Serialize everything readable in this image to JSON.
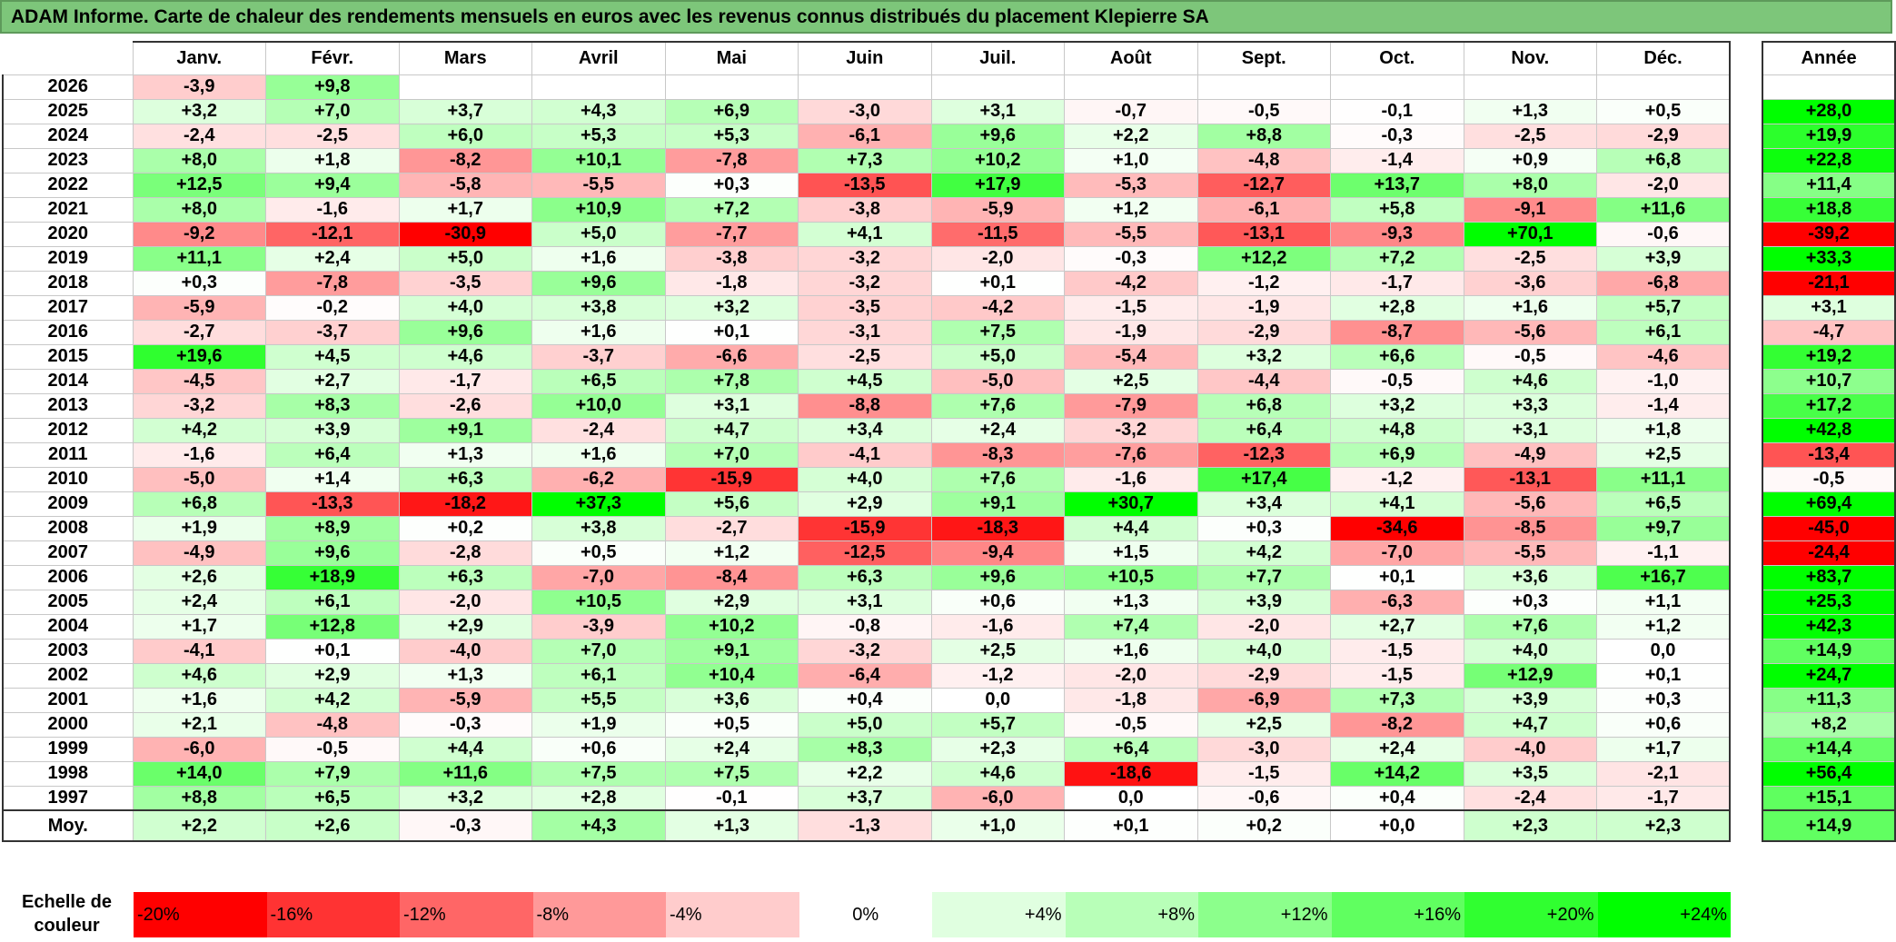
{
  "title": "ADAM Informe. Carte de chaleur des rendements mensuels en euros avec les revenus connus distribués du placement Klepierre SA",
  "chart_data": {
    "type": "heatmap",
    "months": [
      "Janv.",
      "Févr.",
      "Mars",
      "Avril",
      "Mai",
      "Juin",
      "Juil.",
      "Août",
      "Sept.",
      "Oct.",
      "Nov.",
      "Déc."
    ],
    "year_header": "Année",
    "rows": [
      {
        "year": "2026",
        "values": [
          "-3,9",
          "+9,8",
          "",
          "",
          "",
          "",
          "",
          "",
          "",
          "",
          "",
          ""
        ],
        "annual": ""
      },
      {
        "year": "2025",
        "values": [
          "+3,2",
          "+7,0",
          "+3,7",
          "+4,3",
          "+6,9",
          "-3,0",
          "+3,1",
          "-0,7",
          "-0,5",
          "-0,1",
          "+1,3",
          "+0,5"
        ],
        "annual": "+28,0"
      },
      {
        "year": "2024",
        "values": [
          "-2,4",
          "-2,5",
          "+6,0",
          "+5,3",
          "+5,3",
          "-6,1",
          "+9,6",
          "+2,2",
          "+8,8",
          "-0,3",
          "-2,5",
          "-2,9"
        ],
        "annual": "+19,9"
      },
      {
        "year": "2023",
        "values": [
          "+8,0",
          "+1,8",
          "-8,2",
          "+10,1",
          "-7,8",
          "+7,3",
          "+10,2",
          "+1,0",
          "-4,8",
          "-1,4",
          "+0,9",
          "+6,8"
        ],
        "annual": "+22,8"
      },
      {
        "year": "2022",
        "values": [
          "+12,5",
          "+9,4",
          "-5,8",
          "-5,5",
          "+0,3",
          "-13,5",
          "+17,9",
          "-5,3",
          "-12,7",
          "+13,7",
          "+8,0",
          "-2,0"
        ],
        "annual": "+11,4"
      },
      {
        "year": "2021",
        "values": [
          "+8,0",
          "-1,6",
          "+1,7",
          "+10,9",
          "+7,2",
          "-3,8",
          "-5,9",
          "+1,2",
          "-6,1",
          "+5,8",
          "-9,1",
          "+11,6"
        ],
        "annual": "+18,8"
      },
      {
        "year": "2020",
        "values": [
          "-9,2",
          "-12,1",
          "-30,9",
          "+5,0",
          "-7,7",
          "+4,1",
          "-11,5",
          "-5,5",
          "-13,1",
          "-9,3",
          "+70,1",
          "-0,6"
        ],
        "annual": "-39,2"
      },
      {
        "year": "2019",
        "values": [
          "+11,1",
          "+2,4",
          "+5,0",
          "+1,6",
          "-3,8",
          "-3,2",
          "-2,0",
          "-0,3",
          "+12,2",
          "+7,2",
          "-2,5",
          "+3,9"
        ],
        "annual": "+33,3"
      },
      {
        "year": "2018",
        "values": [
          "+0,3",
          "-7,8",
          "-3,5",
          "+9,6",
          "-1,8",
          "-3,2",
          "+0,1",
          "-4,2",
          "-1,2",
          "-1,7",
          "-3,6",
          "-6,8"
        ],
        "annual": "-21,1"
      },
      {
        "year": "2017",
        "values": [
          "-5,9",
          "-0,2",
          "+4,0",
          "+3,8",
          "+3,2",
          "-3,5",
          "-4,2",
          "-1,5",
          "-1,9",
          "+2,8",
          "+1,6",
          "+5,7"
        ],
        "annual": "+3,1"
      },
      {
        "year": "2016",
        "values": [
          "-2,7",
          "-3,7",
          "+9,6",
          "+1,6",
          "+0,1",
          "-3,1",
          "+7,5",
          "-1,9",
          "-2,9",
          "-8,7",
          "-5,6",
          "+6,1"
        ],
        "annual": "-4,7"
      },
      {
        "year": "2015",
        "values": [
          "+19,6",
          "+4,5",
          "+4,6",
          "-3,7",
          "-6,6",
          "-2,5",
          "+5,0",
          "-5,4",
          "+3,2",
          "+6,6",
          "-0,5",
          "-4,6"
        ],
        "annual": "+19,2"
      },
      {
        "year": "2014",
        "values": [
          "-4,5",
          "+2,7",
          "-1,7",
          "+6,5",
          "+7,8",
          "+4,5",
          "-5,0",
          "+2,5",
          "-4,4",
          "-0,5",
          "+4,6",
          "-1,0"
        ],
        "annual": "+10,7"
      },
      {
        "year": "2013",
        "values": [
          "-3,2",
          "+8,3",
          "-2,6",
          "+10,0",
          "+3,1",
          "-8,8",
          "+7,6",
          "-7,9",
          "+6,8",
          "+3,2",
          "+3,3",
          "-1,4"
        ],
        "annual": "+17,2"
      },
      {
        "year": "2012",
        "values": [
          "+4,2",
          "+3,9",
          "+9,1",
          "-2,4",
          "+4,7",
          "+3,4",
          "+2,4",
          "-3,2",
          "+6,4",
          "+4,8",
          "+3,1",
          "+1,8"
        ],
        "annual": "+42,8"
      },
      {
        "year": "2011",
        "values": [
          "-1,6",
          "+6,4",
          "+1,3",
          "+1,6",
          "+7,0",
          "-4,1",
          "-8,3",
          "-7,6",
          "-12,3",
          "+6,9",
          "-4,9",
          "+2,5"
        ],
        "annual": "-13,4"
      },
      {
        "year": "2010",
        "values": [
          "-5,0",
          "+1,4",
          "+6,3",
          "-6,2",
          "-15,9",
          "+4,0",
          "+7,6",
          "-1,6",
          "+17,4",
          "-1,2",
          "-13,1",
          "+11,1"
        ],
        "annual": "-0,5"
      },
      {
        "year": "2009",
        "values": [
          "+6,8",
          "-13,3",
          "-18,2",
          "+37,3",
          "+5,6",
          "+2,9",
          "+9,1",
          "+30,7",
          "+3,4",
          "+4,1",
          "-5,6",
          "+6,5"
        ],
        "annual": "+69,4"
      },
      {
        "year": "2008",
        "values": [
          "+1,9",
          "+8,9",
          "+0,2",
          "+3,8",
          "-2,7",
          "-15,9",
          "-18,3",
          "+4,4",
          "+0,3",
          "-34,6",
          "-8,5",
          "+9,7"
        ],
        "annual": "-45,0"
      },
      {
        "year": "2007",
        "values": [
          "-4,9",
          "+9,6",
          "-2,8",
          "+0,5",
          "+1,2",
          "-12,5",
          "-9,4",
          "+1,5",
          "+4,2",
          "-7,0",
          "-5,5",
          "-1,1"
        ],
        "annual": "-24,4"
      },
      {
        "year": "2006",
        "values": [
          "+2,6",
          "+18,9",
          "+6,3",
          "-7,0",
          "-8,4",
          "+6,3",
          "+9,6",
          "+10,5",
          "+7,7",
          "+0,1",
          "+3,6",
          "+16,7"
        ],
        "annual": "+83,7"
      },
      {
        "year": "2005",
        "values": [
          "+2,4",
          "+6,1",
          "-2,0",
          "+10,5",
          "+2,9",
          "+3,1",
          "+0,6",
          "+1,3",
          "+3,9",
          "-6,3",
          "+0,3",
          "+1,1"
        ],
        "annual": "+25,3"
      },
      {
        "year": "2004",
        "values": [
          "+1,7",
          "+12,8",
          "+2,9",
          "-3,9",
          "+10,2",
          "-0,8",
          "-1,6",
          "+7,4",
          "-2,0",
          "+2,7",
          "+7,6",
          "+1,2"
        ],
        "annual": "+42,3"
      },
      {
        "year": "2003",
        "values": [
          "-4,1",
          "+0,1",
          "-4,0",
          "+7,0",
          "+9,1",
          "-3,2",
          "+2,5",
          "+1,6",
          "+4,0",
          "-1,5",
          "+4,0",
          "0,0"
        ],
        "annual": "+14,9"
      },
      {
        "year": "2002",
        "values": [
          "+4,6",
          "+2,9",
          "+1,3",
          "+6,1",
          "+10,4",
          "-6,4",
          "-1,2",
          "-2,0",
          "-2,9",
          "-1,5",
          "+12,9",
          "+0,1"
        ],
        "annual": "+24,7"
      },
      {
        "year": "2001",
        "values": [
          "+1,6",
          "+4,2",
          "-5,9",
          "+5,5",
          "+3,6",
          "+0,4",
          "0,0",
          "-1,8",
          "-6,9",
          "+7,3",
          "+3,9",
          "+0,3"
        ],
        "annual": "+11,3"
      },
      {
        "year": "2000",
        "values": [
          "+2,1",
          "-4,8",
          "-0,3",
          "+1,9",
          "+0,5",
          "+5,0",
          "+5,7",
          "-0,5",
          "+2,5",
          "-8,2",
          "+4,7",
          "+0,6"
        ],
        "annual": "+8,2"
      },
      {
        "year": "1999",
        "values": [
          "-6,0",
          "-0,5",
          "+4,4",
          "+0,6",
          "+2,4",
          "+8,3",
          "+2,3",
          "+6,4",
          "-3,0",
          "+2,4",
          "-4,0",
          "+1,7"
        ],
        "annual": "+14,4"
      },
      {
        "year": "1998",
        "values": [
          "+14,0",
          "+7,9",
          "+11,6",
          "+7,5",
          "+7,5",
          "+2,2",
          "+4,6",
          "-18,6",
          "-1,5",
          "+14,2",
          "+3,5",
          "-2,1"
        ],
        "annual": "+56,4"
      },
      {
        "year": "1997",
        "values": [
          "+8,8",
          "+6,5",
          "+3,2",
          "+2,8",
          "-0,1",
          "+3,7",
          "-6,0",
          "0,0",
          "-0,6",
          "+0,4",
          "-2,4",
          "-1,7"
        ],
        "annual": "+15,1"
      }
    ],
    "average": {
      "label": "Moy.",
      "values": [
        "+2,2",
        "+2,6",
        "-0,3",
        "+4,3",
        "+1,3",
        "-1,3",
        "+1,0",
        "+0,1",
        "+0,2",
        "+0,0",
        "+2,3",
        "+2,3"
      ],
      "annual": "+14,9"
    },
    "legend": {
      "label_line1": "Echelle de",
      "label_line2": "couleur",
      "entries": [
        "-20%",
        "-16%",
        "-12%",
        "-8%",
        "-4%",
        "0%",
        "+4%",
        "+8%",
        "+12%",
        "+16%",
        "+20%",
        "+24%"
      ],
      "colors": [
        "#ff0000",
        "#ff3333",
        "#ff6666",
        "#ff9999",
        "#ffcccc",
        "#ffffff",
        "#e0ffe0",
        "#b8ffb8",
        "#8cff8c",
        "#60ff60",
        "#30ff30",
        "#00ff00"
      ]
    }
  }
}
